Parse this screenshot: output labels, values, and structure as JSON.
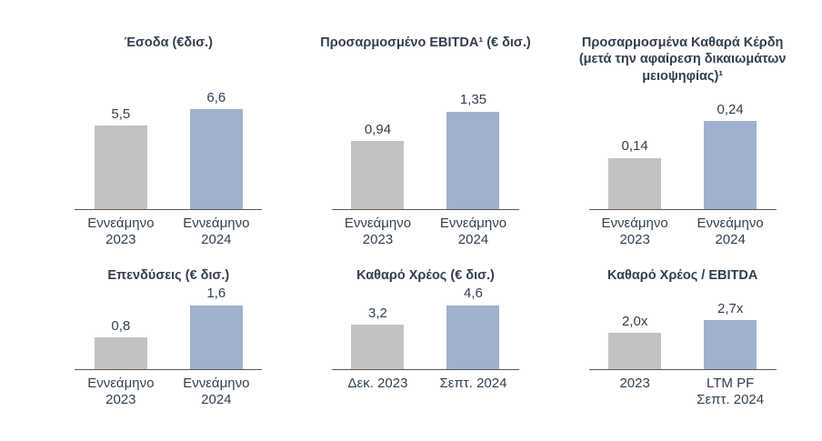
{
  "page": {
    "background": "#FFFFFF",
    "text_color": "#333F50",
    "axis_color": "#595959",
    "bar_gray": "#C2C2C2",
    "bar_blue": "#9FB1CF"
  },
  "chart_data": [
    {
      "type": "bar",
      "title": "Έσοδα (€δισ.)",
      "categories": [
        "Εννεάμηνο\n2023",
        "Εννεάμηνο\n2024"
      ],
      "values": [
        5.5,
        6.6
      ],
      "value_labels": [
        "5,5",
        "6,6"
      ],
      "colors": [
        "#C2C2C2",
        "#9FB1CF"
      ],
      "ylim": [
        0,
        8.1
      ],
      "grid": false,
      "legend": "none"
    },
    {
      "type": "bar",
      "title": "Προσαρμοσμένο EBITDA¹ (€ δισ.)",
      "categories": [
        "Εννεάμηνο\n2023",
        "Εννεάμηνο\n2024"
      ],
      "values": [
        0.94,
        1.35
      ],
      "value_labels": [
        "0,94",
        "1,35"
      ],
      "colors": [
        "#C2C2C2",
        "#9FB1CF"
      ],
      "ylim": [
        0,
        1.7
      ],
      "grid": false,
      "legend": "none"
    },
    {
      "type": "bar",
      "title": "Προσαρμοσμένα Καθαρά Κέρδη\n(μετά την αφαίρεση δικαιωμάτων\nμειοψηφίας)¹",
      "categories": [
        "Εννεάμηνο\n2023",
        "Εννεάμηνο\n2024"
      ],
      "values": [
        0.14,
        0.24
      ],
      "value_labels": [
        "0,14",
        "0,24"
      ],
      "colors": [
        "#C2C2C2",
        "#9FB1CF"
      ],
      "ylim": [
        0,
        0.335
      ],
      "grid": false,
      "legend": "none"
    },
    {
      "type": "bar",
      "title": "Επενδύσεις (€ δισ.)",
      "categories": [
        "Εννεάμηνο\n2023",
        "Εννεάμηνο\n2024"
      ],
      "values": [
        0.8,
        1.6
      ],
      "value_labels": [
        "0,8",
        "1,6"
      ],
      "colors": [
        "#C2C2C2",
        "#9FB1CF"
      ],
      "ylim": [
        0,
        2.15
      ],
      "grid": false,
      "legend": "none"
    },
    {
      "type": "bar",
      "title": "Καθαρό Χρέος (€ δισ.)",
      "categories": [
        "Δεκ. 2023",
        "Σεπτ. 2024"
      ],
      "values": [
        3.2,
        4.6
      ],
      "value_labels": [
        "3,2",
        "4,6"
      ],
      "colors": [
        "#C2C2C2",
        "#9FB1CF"
      ],
      "ylim": [
        0,
        6.2
      ],
      "grid": false,
      "legend": "none"
    },
    {
      "type": "bar",
      "title": "Καθαρό Χρέος / EBITDA",
      "categories": [
        "2023",
        "LTM PF\nΣεπτ. 2024"
      ],
      "values": [
        2.0,
        2.7
      ],
      "value_labels": [
        "2,0x",
        "2,7x"
      ],
      "colors": [
        "#C2C2C2",
        "#9FB1CF"
      ],
      "ylim": [
        0,
        4.75
      ],
      "grid": false,
      "legend": "none"
    }
  ]
}
